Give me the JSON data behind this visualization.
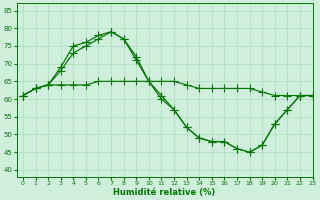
{
  "xlabel": "Humidité relative (%)",
  "xlim": [
    -0.5,
    23
  ],
  "ylim": [
    38,
    87
  ],
  "yticks": [
    40,
    45,
    50,
    55,
    60,
    65,
    70,
    75,
    80,
    85
  ],
  "xticks": [
    0,
    1,
    2,
    3,
    4,
    5,
    6,
    7,
    8,
    9,
    10,
    11,
    12,
    13,
    14,
    15,
    16,
    17,
    18,
    19,
    20,
    21,
    22,
    23
  ],
  "bg_color": "#d0eedc",
  "grid_color": "#aaddbb",
  "line_color": "#007700",
  "markersize": 2.2,
  "linewidth": 0.85,
  "curves": [
    [
      61,
      63,
      64,
      69,
      75,
      76,
      78,
      79,
      77,
      72,
      65,
      61,
      57,
      52,
      49,
      48,
      48,
      46,
      45,
      47,
      53,
      57,
      61,
      61
    ],
    [
      61,
      63,
      64,
      64,
      64,
      64,
      65,
      65,
      65,
      65,
      65,
      65,
      65,
      64,
      63,
      63,
      63,
      63,
      63,
      62,
      61,
      61,
      61,
      61
    ],
    [
      61,
      63,
      64,
      68,
      73,
      75,
      77,
      79,
      77,
      71,
      65,
      60,
      57,
      52,
      49,
      48,
      48,
      46,
      45,
      47,
      53,
      57,
      61,
      61
    ]
  ]
}
